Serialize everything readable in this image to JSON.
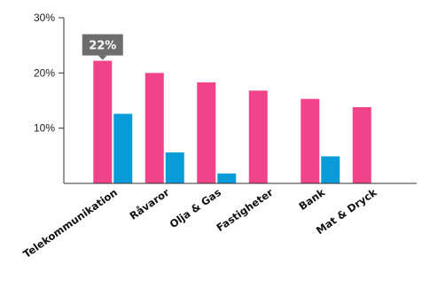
{
  "chart_data": {
    "type": "bar",
    "categories": [
      "Telekommunikation",
      "Råvaror",
      "Olja & Gas",
      "Fastigheter",
      "Bank",
      "Mat & Dryck"
    ],
    "series": [
      {
        "values": [
          22.2,
          20.0,
          18.3,
          16.8,
          15.3,
          13.8
        ],
        "color": "#f0438a"
      },
      {
        "values": [
          12.6,
          5.6,
          1.8,
          0,
          4.9,
          0
        ],
        "color": "#0a9bd9"
      }
    ],
    "ylim": [
      0,
      30
    ],
    "yticks": [
      {
        "value": 10,
        "label": "10%"
      },
      {
        "value": 20,
        "label": "20%"
      },
      {
        "value": 30,
        "label": "30%"
      }
    ],
    "callout": {
      "text": "22%",
      "category_index": 0,
      "series_index": 0,
      "color": "#6d6d6d"
    },
    "axis_color": "#333333",
    "grid": false,
    "legend": "none",
    "title": "",
    "xlabel": "",
    "ylabel": ""
  }
}
